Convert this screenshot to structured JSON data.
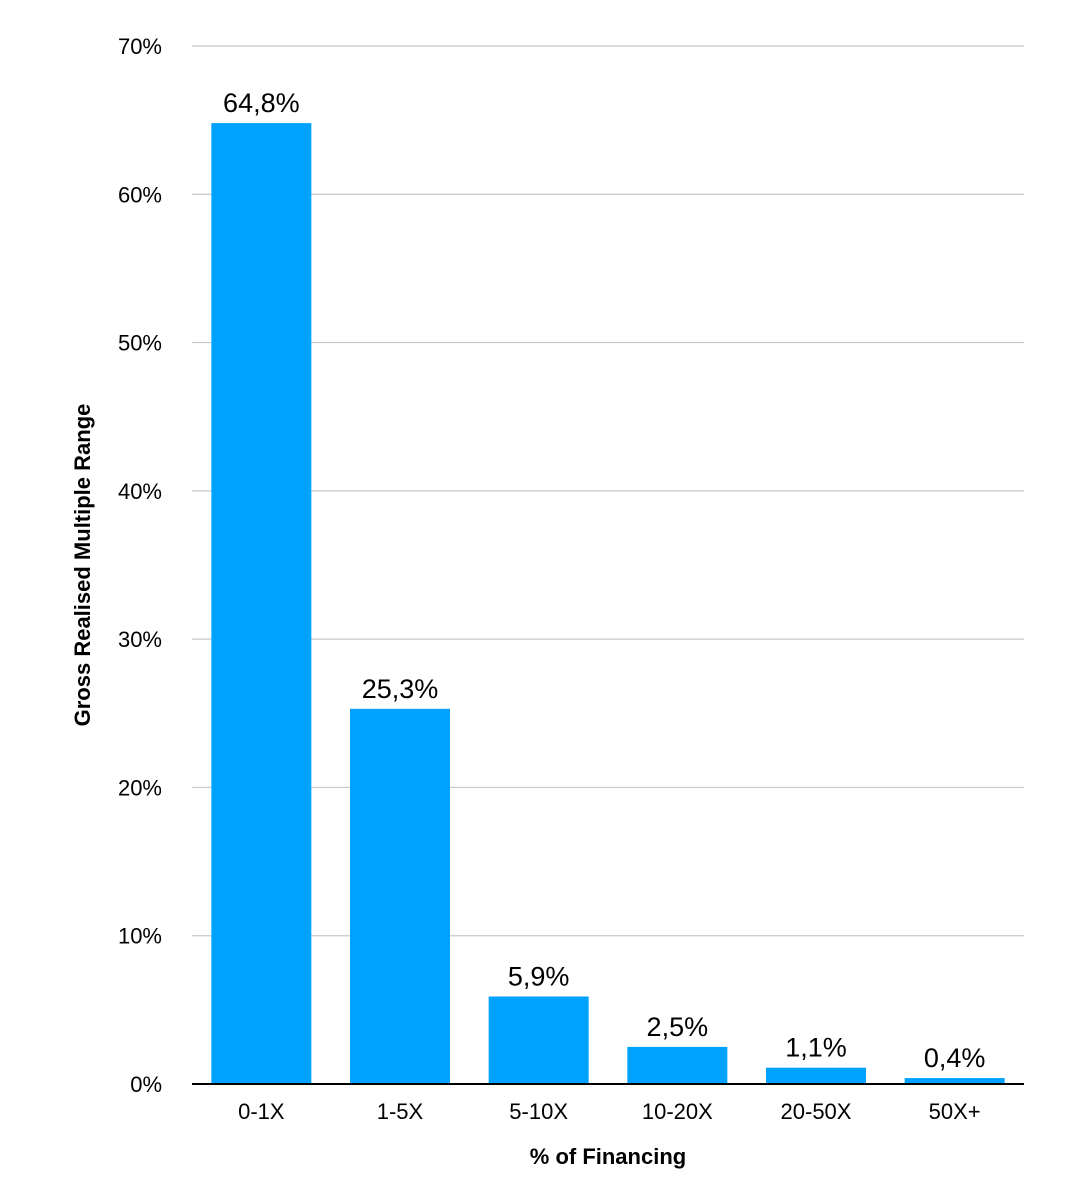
{
  "chart_data": {
    "type": "bar",
    "title": "",
    "xlabel": "% of Financing",
    "ylabel": "Gross Realised Multiple Range",
    "categories": [
      "0-1X",
      "1-5X",
      "5-10X",
      "10-20X",
      "20-50X",
      "50X+"
    ],
    "values": [
      64.8,
      25.3,
      5.9,
      2.5,
      1.1,
      0.4
    ],
    "data_labels": [
      "64,8%",
      "25,3%",
      "5,9%",
      "2,5%",
      "1,1%",
      "0,4%"
    ],
    "ylim": [
      0,
      70
    ],
    "yticks": [
      0,
      10,
      20,
      30,
      40,
      50,
      60,
      70
    ],
    "ytick_labels": [
      "0%",
      "10%",
      "20%",
      "30%",
      "40%",
      "50%",
      "60%",
      "70%"
    ],
    "grid": true,
    "legend": "none",
    "colors": {
      "bar": "#00A2FF",
      "grid": "#c8c8c8",
      "axis": "#000000"
    }
  }
}
